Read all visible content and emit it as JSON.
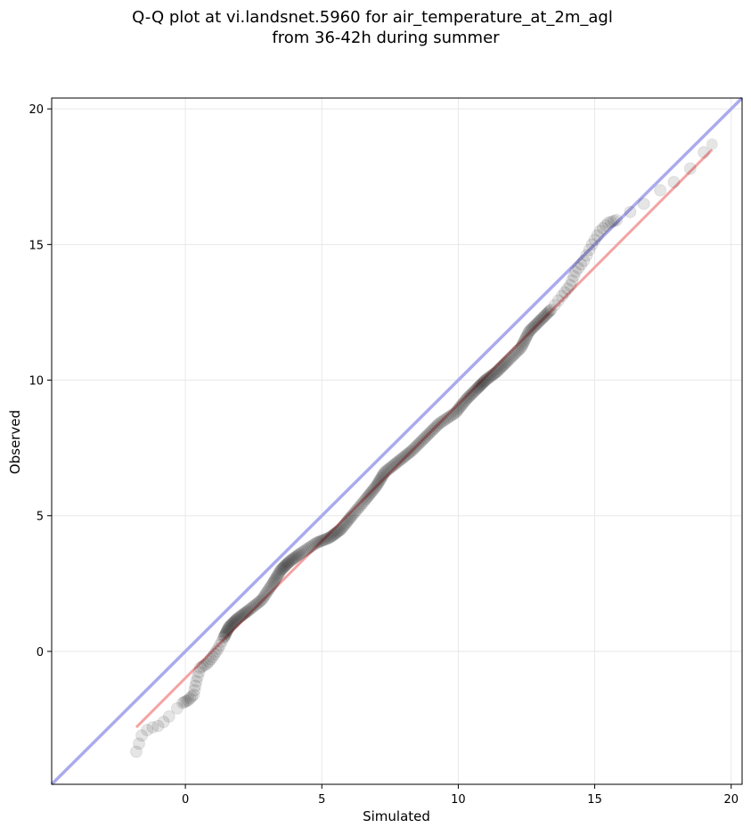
{
  "chart_data": {
    "type": "scatter",
    "title": "Q-Q plot at vi.landsnet.5960 for air_temperature_at_2m_agl",
    "subtitle": "from 36-42h during summer",
    "xlabel": "Simulated",
    "ylabel": "Observed",
    "xlim": [
      -4.9,
      20.4
    ],
    "ylim": [
      -4.9,
      20.4
    ],
    "xticks": [
      0,
      5,
      10,
      15,
      20
    ],
    "yticks": [
      0,
      5,
      10,
      15,
      20
    ],
    "grid": true,
    "legend": "none",
    "reference_line": {
      "kind": "1:1",
      "color": "#aaaaee",
      "from": [
        -4.9,
        -4.9
      ],
      "to": [
        20.4,
        20.4
      ]
    },
    "fit_line": {
      "kind": "linear fit",
      "color": "#f4a3a3",
      "from": [
        -1.8,
        -2.8
      ],
      "to": [
        19.3,
        18.5
      ]
    },
    "points_color": "#000000",
    "anchors": [
      [
        -1.8,
        -3.7
      ],
      [
        -1.7,
        -3.4
      ],
      [
        -1.6,
        -3.1
      ],
      [
        -1.4,
        -2.9
      ],
      [
        -1.2,
        -2.8
      ],
      [
        -1.0,
        -2.75
      ],
      [
        -0.8,
        -2.6
      ],
      [
        -0.6,
        -2.4
      ],
      [
        -0.3,
        -2.1
      ],
      [
        -0.1,
        -1.9
      ],
      [
        0.1,
        -1.8
      ],
      [
        0.3,
        -1.6
      ],
      [
        0.4,
        -1.1
      ],
      [
        0.55,
        -0.6
      ],
      [
        0.8,
        -0.45
      ],
      [
        1.0,
        -0.2
      ],
      [
        1.2,
        0.1
      ],
      [
        1.4,
        0.5
      ],
      [
        1.6,
        0.9
      ],
      [
        1.9,
        1.2
      ],
      [
        2.3,
        1.5
      ],
      [
        2.8,
        1.9
      ],
      [
        3.2,
        2.5
      ],
      [
        3.5,
        3.0
      ],
      [
        3.8,
        3.3
      ],
      [
        4.2,
        3.6
      ],
      [
        4.8,
        4.0
      ],
      [
        5.3,
        4.2
      ],
      [
        5.7,
        4.5
      ],
      [
        6.1,
        5.0
      ],
      [
        6.6,
        5.6
      ],
      [
        7.0,
        6.1
      ],
      [
        7.3,
        6.6
      ],
      [
        7.8,
        7.0
      ],
      [
        8.3,
        7.4
      ],
      [
        8.8,
        7.9
      ],
      [
        9.3,
        8.4
      ],
      [
        9.9,
        8.8
      ],
      [
        10.3,
        9.3
      ],
      [
        10.7,
        9.7
      ],
      [
        11.0,
        10.0
      ],
      [
        11.4,
        10.3
      ],
      [
        11.8,
        10.7
      ],
      [
        12.3,
        11.2
      ],
      [
        12.6,
        11.8
      ],
      [
        13.0,
        12.2
      ],
      [
        13.4,
        12.6
      ],
      [
        13.8,
        13.1
      ],
      [
        14.1,
        13.5
      ],
      [
        14.3,
        14.0
      ],
      [
        14.6,
        14.4
      ],
      [
        14.9,
        15.0
      ],
      [
        15.2,
        15.5
      ],
      [
        15.5,
        15.8
      ],
      [
        15.8,
        15.9
      ],
      [
        16.3,
        16.2
      ],
      [
        16.8,
        16.5
      ],
      [
        17.4,
        17.0
      ],
      [
        17.9,
        17.3
      ],
      [
        18.5,
        17.8
      ],
      [
        19.0,
        18.4
      ],
      [
        19.3,
        18.7
      ]
    ]
  }
}
